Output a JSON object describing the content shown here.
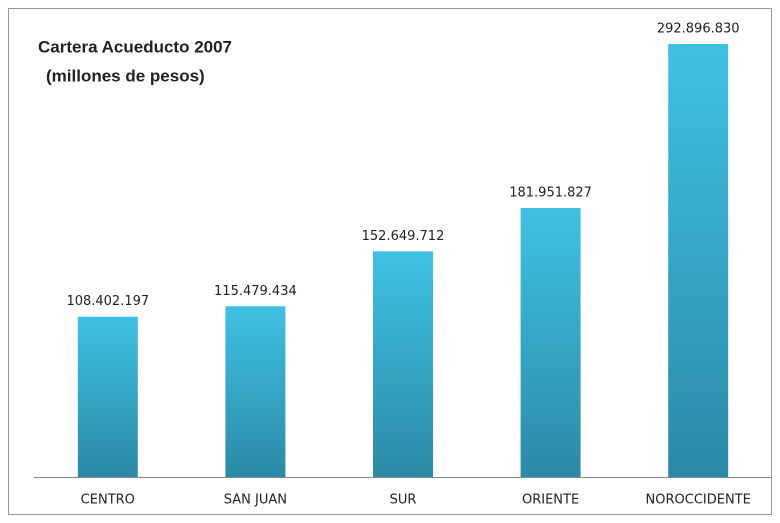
{
  "chart_data": {
    "type": "bar",
    "title": "Cartera Acueducto 2007",
    "subtitle": "(millones de pesos)",
    "categories": [
      "CENTRO",
      "SAN JUAN",
      "SUR",
      "ORIENTE",
      "NOROCCIDENTE"
    ],
    "values": [
      108402197,
      115479434,
      152649712,
      181951827,
      292896830
    ],
    "value_labels": [
      "108.402.197",
      "115.479.434",
      "152.649.712",
      "181.951.827",
      "292.896.830"
    ],
    "color": "#3fc1e3"
  }
}
